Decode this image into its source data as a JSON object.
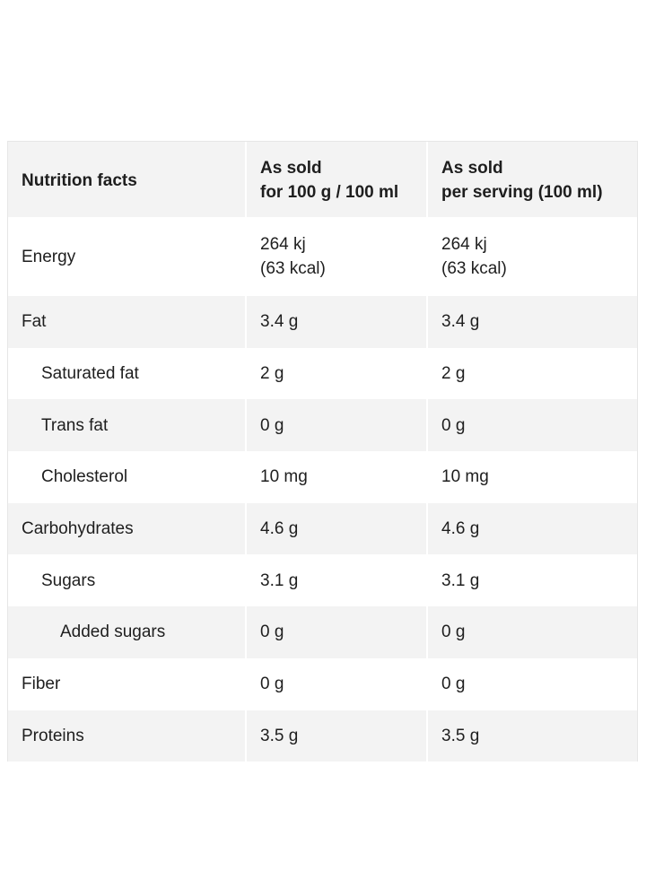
{
  "table": {
    "header": {
      "label": "Nutrition facts",
      "col1_line1": "As sold",
      "col1_line2": "for 100 g / 100 ml",
      "col2_line1": "As sold",
      "col2_line2": "per serving (100 ml)"
    },
    "rows": [
      {
        "name": "Energy",
        "per100_line1": "264 kj",
        "per100_line2": "(63 kcal)",
        "serving_line1": "264 kj",
        "serving_line2": "(63 kcal)"
      },
      {
        "name": "Fat",
        "per100": "3.4 g",
        "serving": "3.4 g"
      },
      {
        "name": "Saturated fat",
        "per100": "2 g",
        "serving": "2 g"
      },
      {
        "name": "Trans fat",
        "per100": "0 g",
        "serving": "0 g"
      },
      {
        "name": "Cholesterol",
        "per100": "10 mg",
        "serving": "10 mg"
      },
      {
        "name": "Carbohydrates",
        "per100": "4.6 g",
        "serving": "4.6 g"
      },
      {
        "name": "Sugars",
        "per100": "3.1 g",
        "serving": "3.1 g"
      },
      {
        "name": "Added sugars",
        "per100": "0 g",
        "serving": "0 g"
      },
      {
        "name": "Fiber",
        "per100": "0 g",
        "serving": "0 g"
      },
      {
        "name": "Proteins",
        "per100": "3.5 g",
        "serving": "3.5 g"
      }
    ]
  },
  "colors": {
    "row_shade": "#f3f3f3",
    "text": "#1e1e1e"
  }
}
